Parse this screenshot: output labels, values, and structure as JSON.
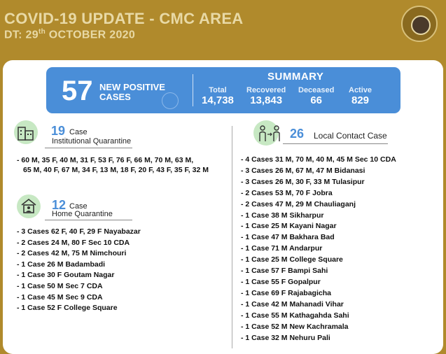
{
  "header": {
    "title": "COVID-19 UPDATE - CMC AREA",
    "date_prefix": "DT: 29",
    "date_sup": "th",
    "date_suffix": " OCTOBER 2020"
  },
  "banner": {
    "new_positive_count": "57",
    "new_positive_label": "NEW POSITIVE CASES",
    "summary_title": "SUMMARY",
    "stats": [
      {
        "label": "Total",
        "value": "14,738"
      },
      {
        "label": "Recovered",
        "value": "13,843"
      },
      {
        "label": "Deceased",
        "value": "66"
      },
      {
        "label": "Active",
        "value": "829"
      }
    ]
  },
  "institutional": {
    "count": "19",
    "label_line1": "Case",
    "label_line2": "Institutional Quarantine",
    "items": [
      "60 M, 35 F, 40 M, 31 F, 53 F, 76 F, 66 M, 70 M, 63 M,",
      "65 M, 40 F, 67 M, 34 F, 13 M, 18 F, 20 F, 43 F, 35 F, 32 M"
    ]
  },
  "home": {
    "count": "12",
    "label_line1": "Case",
    "label_line2": "Home Quarantine",
    "items": [
      "3 Cases 62 F, 40 F, 29 F Nayabazar",
      "2 Cases 24 M, 80 F Sec 10 CDA",
      "2 Cases 42 M, 75 M Nimchouri",
      "1 Case 26 M Badambadi",
      "1 Case 30 F Goutam Nagar",
      "1 Case 50 M Sec 7 CDA",
      "1 Case 45 M Sec 9 CDA",
      "1 Case 52 F College Square"
    ]
  },
  "local": {
    "count": "26",
    "label": "Local Contact Case",
    "items": [
      "4 Cases 31 M, 70 M, 40 M, 45 M Sec 10 CDA",
      "3 Cases 26 M, 67 M, 47 M Bidanasi",
      "3 Cases 26 M, 30 F, 33 M Tulasipur",
      "2 Cases 53 M, 70 F Jobra",
      "2 Cases 47 M, 29 M Chauliaganj",
      "1 Case 38 M Sikharpur",
      "1 Case 25 M Kayani Nagar",
      "1 Case 47 M Bakhara Bad",
      "1 Case 71 M Andarpur",
      "1 Case 25 M College Square",
      "1 Case 57 F Bampi Sahi",
      "1 Case 55 F Gopalpur",
      "1 Case 69 F Rajabagicha",
      "1 Case 42 M Mahanadi Vihar",
      "1 Case 55 M Kathagahda Sahi",
      "1 Case 52 M New Kachramala",
      "1 Case 32 M Nehuru Pali"
    ]
  },
  "colors": {
    "background": "#b08a2c",
    "header_text": "#e8d9a6",
    "banner_blue": "#4a8ed8",
    "accent_blue": "#4a8ed8",
    "icon_green": "#c7e8c3"
  }
}
